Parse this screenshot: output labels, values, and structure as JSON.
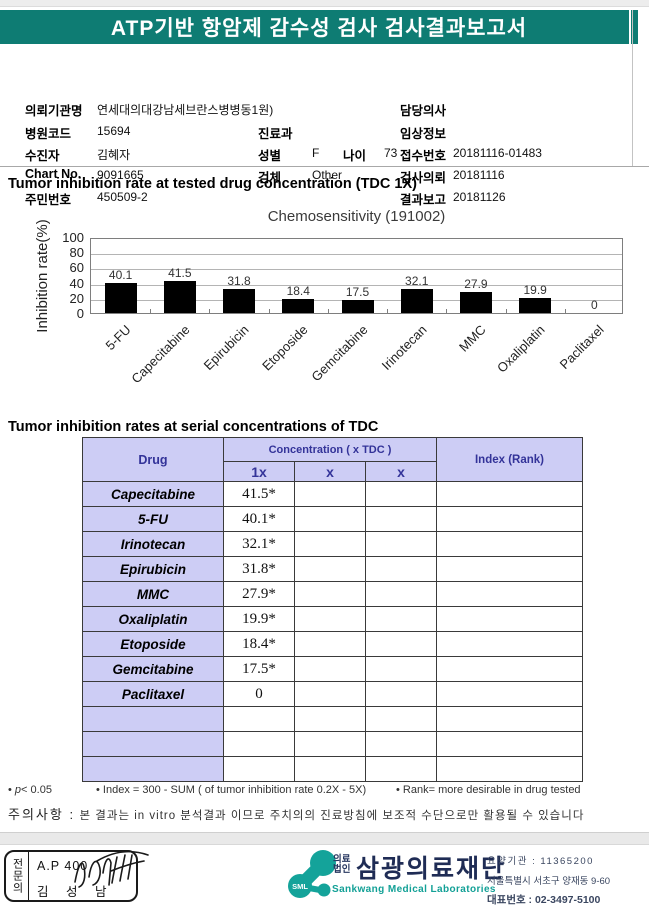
{
  "header": {
    "title": "ATP기반 항암제 감수성 검사 검사결과보고서",
    "band_color": "#0e7c73"
  },
  "patient": {
    "org_label": "의뢰기관명",
    "org_value": "연세대의대강남세브란스병병동1원)",
    "hospital_code_label": "병원코드",
    "hospital_code_value": "15694",
    "patient_label": "수진자",
    "patient_value": "김혜자",
    "chart_no_label": "Chart No.",
    "chart_no_value": "9091665",
    "resident_no_label": "주민번호",
    "resident_no_value": "450509-2",
    "dept_label": "진료과",
    "dept_value": "",
    "sex_label": "성별",
    "sex_value": "F",
    "age_label": "나이",
    "age_value": "73",
    "specimen_label": "검체",
    "specimen_value": "Other",
    "doctor_label": "담당의사",
    "doctor_value": "",
    "clinical_label": "임상정보",
    "clinical_value": "",
    "receipt_label": "접수번호",
    "receipt_value": "20181116-01483",
    "request_label": "검사의뢰",
    "request_value": "20181116",
    "report_label": "결과보고",
    "report_value": "20181126"
  },
  "section1_title": "Tumor inhibition rate at tested drug concentration (TDC 1X)",
  "chart_data": {
    "type": "bar",
    "title": "Chemosensitivity (191002)",
    "ylabel": "Inhibition rate(%)",
    "xlabel": "",
    "categories": [
      "5-FU",
      "Capecitabine",
      "Epirubicin",
      "Etoposide",
      "Gemcitabine",
      "Irinotecan",
      "MMC",
      "Oxaliplatin",
      "Paclitaxel"
    ],
    "values": [
      40.1,
      41.5,
      31.8,
      18.4,
      17.5,
      32.1,
      27.9,
      19.9,
      0
    ],
    "ylim": [
      0,
      100
    ],
    "yticks": [
      0,
      20,
      40,
      60,
      80,
      100
    ],
    "grid": true,
    "legend": false,
    "bar_color": "#000000"
  },
  "section2_title": "Tumor inhibition rates at serial concentrations of TDC",
  "table": {
    "header": {
      "drug": "Drug",
      "concentration": "Concentration ( x TDC )",
      "index": "Index (Rank)",
      "sub": [
        "1x",
        "x",
        "x"
      ]
    },
    "rows": [
      {
        "drug": "Capecitabine",
        "c1": "41.5*",
        "c2": "",
        "c3": "",
        "index": ""
      },
      {
        "drug": "5-FU",
        "c1": "40.1*",
        "c2": "",
        "c3": "",
        "index": ""
      },
      {
        "drug": "Irinotecan",
        "c1": "32.1*",
        "c2": "",
        "c3": "",
        "index": ""
      },
      {
        "drug": "Epirubicin",
        "c1": "31.8*",
        "c2": "",
        "c3": "",
        "index": ""
      },
      {
        "drug": "MMC",
        "c1": "27.9*",
        "c2": "",
        "c3": "",
        "index": ""
      },
      {
        "drug": "Oxaliplatin",
        "c1": "19.9*",
        "c2": "",
        "c3": "",
        "index": ""
      },
      {
        "drug": "Etoposide",
        "c1": "18.4*",
        "c2": "",
        "c3": "",
        "index": ""
      },
      {
        "drug": "Gemcitabine",
        "c1": "17.5*",
        "c2": "",
        "c3": "",
        "index": ""
      },
      {
        "drug": "Paclitaxel",
        "c1": "0",
        "c2": "",
        "c3": "",
        "index": ""
      },
      {
        "drug": "",
        "c1": "",
        "c2": "",
        "c3": "",
        "index": ""
      },
      {
        "drug": "",
        "c1": "",
        "c2": "",
        "c3": "",
        "index": ""
      },
      {
        "drug": "",
        "c1": "",
        "c2": "",
        "c3": "",
        "index": ""
      }
    ]
  },
  "footnotes": {
    "p_symbol": "p",
    "p_rest": "< 0.05",
    "index_note": "Index = 300 - SUM ( of tumor inhibition rate 0.2X  -  5X)",
    "rank_note": "Rank= more desirable in drug tested",
    "caution_label": "주의사항 :",
    "caution_text": "본 결과는 in vitro 분석결과 이므로 주치의의 진료방침에 보조적 수단으로만 활용될 수 있습니다"
  },
  "footer": {
    "stamp": {
      "role": "전문의",
      "code": "A.P 400",
      "name": "김 성 남"
    },
    "logo_text": "SML",
    "org_type": "의료\n법인",
    "org_name": "삼광의료재단",
    "org_name_en": "Sankwang Medical Laboratories",
    "reg_line": "요양기관 : 11365200",
    "address_line": "서울특별시 서초구 양재동 9-60",
    "tel_line": "대표번호 : 02-3497-5100"
  },
  "colors": {
    "header_teal": "#0e7c73",
    "logo_teal": "#14a39a",
    "table_header_bg": "#cdcdf5",
    "table_header_text": "#333399",
    "bar_black": "#000000"
  }
}
